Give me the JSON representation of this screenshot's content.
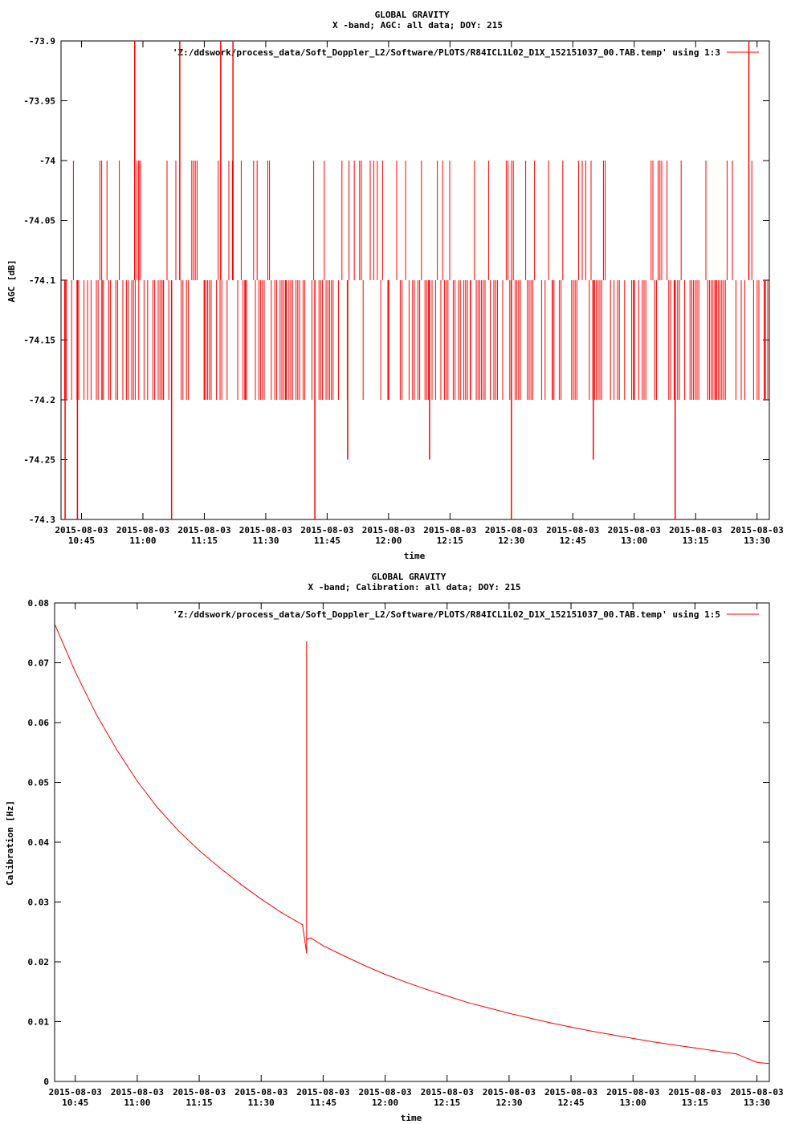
{
  "colors": {
    "series": "#ff0000",
    "axes": "#000000",
    "background": "#ffffff"
  },
  "chart_data": [
    {
      "type": "line",
      "title": "GLOBAL GRAVITY",
      "subtitle": "X -band; AGC: all data; DOY: 215",
      "xlabel": "time",
      "ylabel": "AGC [dB]",
      "x_tick_date": "2015-08-03",
      "x_ticks": [
        "10:45",
        "11:00",
        "11:15",
        "11:30",
        "11:45",
        "12:00",
        "12:15",
        "12:30",
        "12:45",
        "13:00",
        "13:15",
        "13:30"
      ],
      "xlim": [
        "10:40",
        "13:33"
      ],
      "y_ticks": [
        "-73.9",
        "-73.95",
        "-74",
        "-74.05",
        "-74.1",
        "-74.15",
        "-74.2",
        "-74.25",
        "-74.3"
      ],
      "ylim": [
        -74.3,
        -73.9
      ],
      "grid": false,
      "legend_position": "top-right",
      "series": [
        {
          "name": "'Z:/ddswork/process_data/Soft_Doppler_L2/Software/PLOTS/R84ICL1L02_D1X_152151037_00.TAB.temp' using 1:3",
          "x": [
            "10:41",
            "10:42",
            "10:44",
            "10:45",
            "10:50",
            "10:55",
            "10:58",
            "10:59",
            "11:00",
            "11:05",
            "11:07",
            "11:09",
            "11:10",
            "11:15",
            "11:19",
            "11:20",
            "11:22",
            "11:25",
            "11:30",
            "11:35",
            "11:40",
            "11:42",
            "11:45",
            "11:50",
            "11:55",
            "12:00",
            "12:05",
            "12:10",
            "12:15",
            "12:20",
            "12:25",
            "12:30",
            "12:35",
            "12:40",
            "12:45",
            "12:50",
            "12:55",
            "13:00",
            "13:05",
            "13:10",
            "13:15",
            "13:20",
            "13:25",
            "13:28",
            "13:30",
            "13:32"
          ],
          "values": [
            -74.3,
            -74.1,
            -74.3,
            -74.1,
            -74.2,
            -74.1,
            -73.9,
            -74.0,
            -74.1,
            -74.2,
            -74.3,
            -73.9,
            -74.1,
            -74.2,
            -73.9,
            -74.1,
            -73.9,
            -74.2,
            -74.1,
            -74.2,
            -74.1,
            -74.3,
            -74.1,
            -74.25,
            -74.1,
            -74.2,
            -74.1,
            -74.25,
            -74.1,
            -74.2,
            -74.1,
            -74.3,
            -74.1,
            -74.2,
            -74.1,
            -74.25,
            -74.1,
            -74.2,
            -74.1,
            -74.3,
            -74.1,
            -74.2,
            -74.1,
            -73.9,
            -74.1,
            -74.2
          ]
        }
      ]
    },
    {
      "type": "line",
      "title": "GLOBAL GRAVITY",
      "subtitle": "X -band; Calibration: all data; DOY: 215",
      "xlabel": "time",
      "ylabel": "Calibration [Hz]",
      "x_tick_date": "2015-08-03",
      "x_ticks": [
        "10:45",
        "11:00",
        "11:15",
        "11:30",
        "11:45",
        "12:00",
        "12:15",
        "12:30",
        "12:45",
        "13:00",
        "13:15",
        "13:30"
      ],
      "xlim": [
        "10:40",
        "13:33"
      ],
      "y_ticks": [
        "0.08",
        "0.07",
        "0.06",
        "0.05",
        "0.04",
        "0.03",
        "0.02",
        "0.01",
        "0"
      ],
      "ylim": [
        0,
        0.08
      ],
      "grid": false,
      "legend_position": "top-right",
      "series": [
        {
          "name": "'Z:/ddswork/process_data/Soft_Doppler_L2/Software/PLOTS/R84ICL1L02_D1X_152151037_00.TAB.temp' using 1:5",
          "x": [
            "10:40",
            "10:45",
            "10:50",
            "10:55",
            "11:00",
            "11:05",
            "11:10",
            "11:15",
            "11:20",
            "11:25",
            "11:30",
            "11:35",
            "11:40",
            "11:41",
            "11:41",
            "11:41",
            "11:42",
            "11:45",
            "11:50",
            "11:55",
            "12:00",
            "12:05",
            "12:10",
            "12:15",
            "12:20",
            "12:25",
            "12:30",
            "12:35",
            "12:40",
            "12:45",
            "12:50",
            "12:55",
            "13:00",
            "13:05",
            "13:10",
            "13:15",
            "13:20",
            "13:25",
            "13:30",
            "13:33"
          ],
          "values": [
            0.0765,
            0.0685,
            0.0615,
            0.0555,
            0.0502,
            0.0457,
            0.0419,
            0.0386,
            0.0357,
            0.033,
            0.0305,
            0.0282,
            0.0262,
            0.0215,
            0.0735,
            0.0238,
            0.024,
            0.0227,
            0.021,
            0.0194,
            0.0179,
            0.0166,
            0.0154,
            0.0143,
            0.0132,
            0.0123,
            0.0114,
            0.0106,
            0.0098,
            0.0091,
            0.0084,
            0.0078,
            0.0072,
            0.0066,
            0.0061,
            0.0056,
            0.0051,
            0.0046,
            0.0032,
            0.003
          ]
        }
      ]
    }
  ]
}
